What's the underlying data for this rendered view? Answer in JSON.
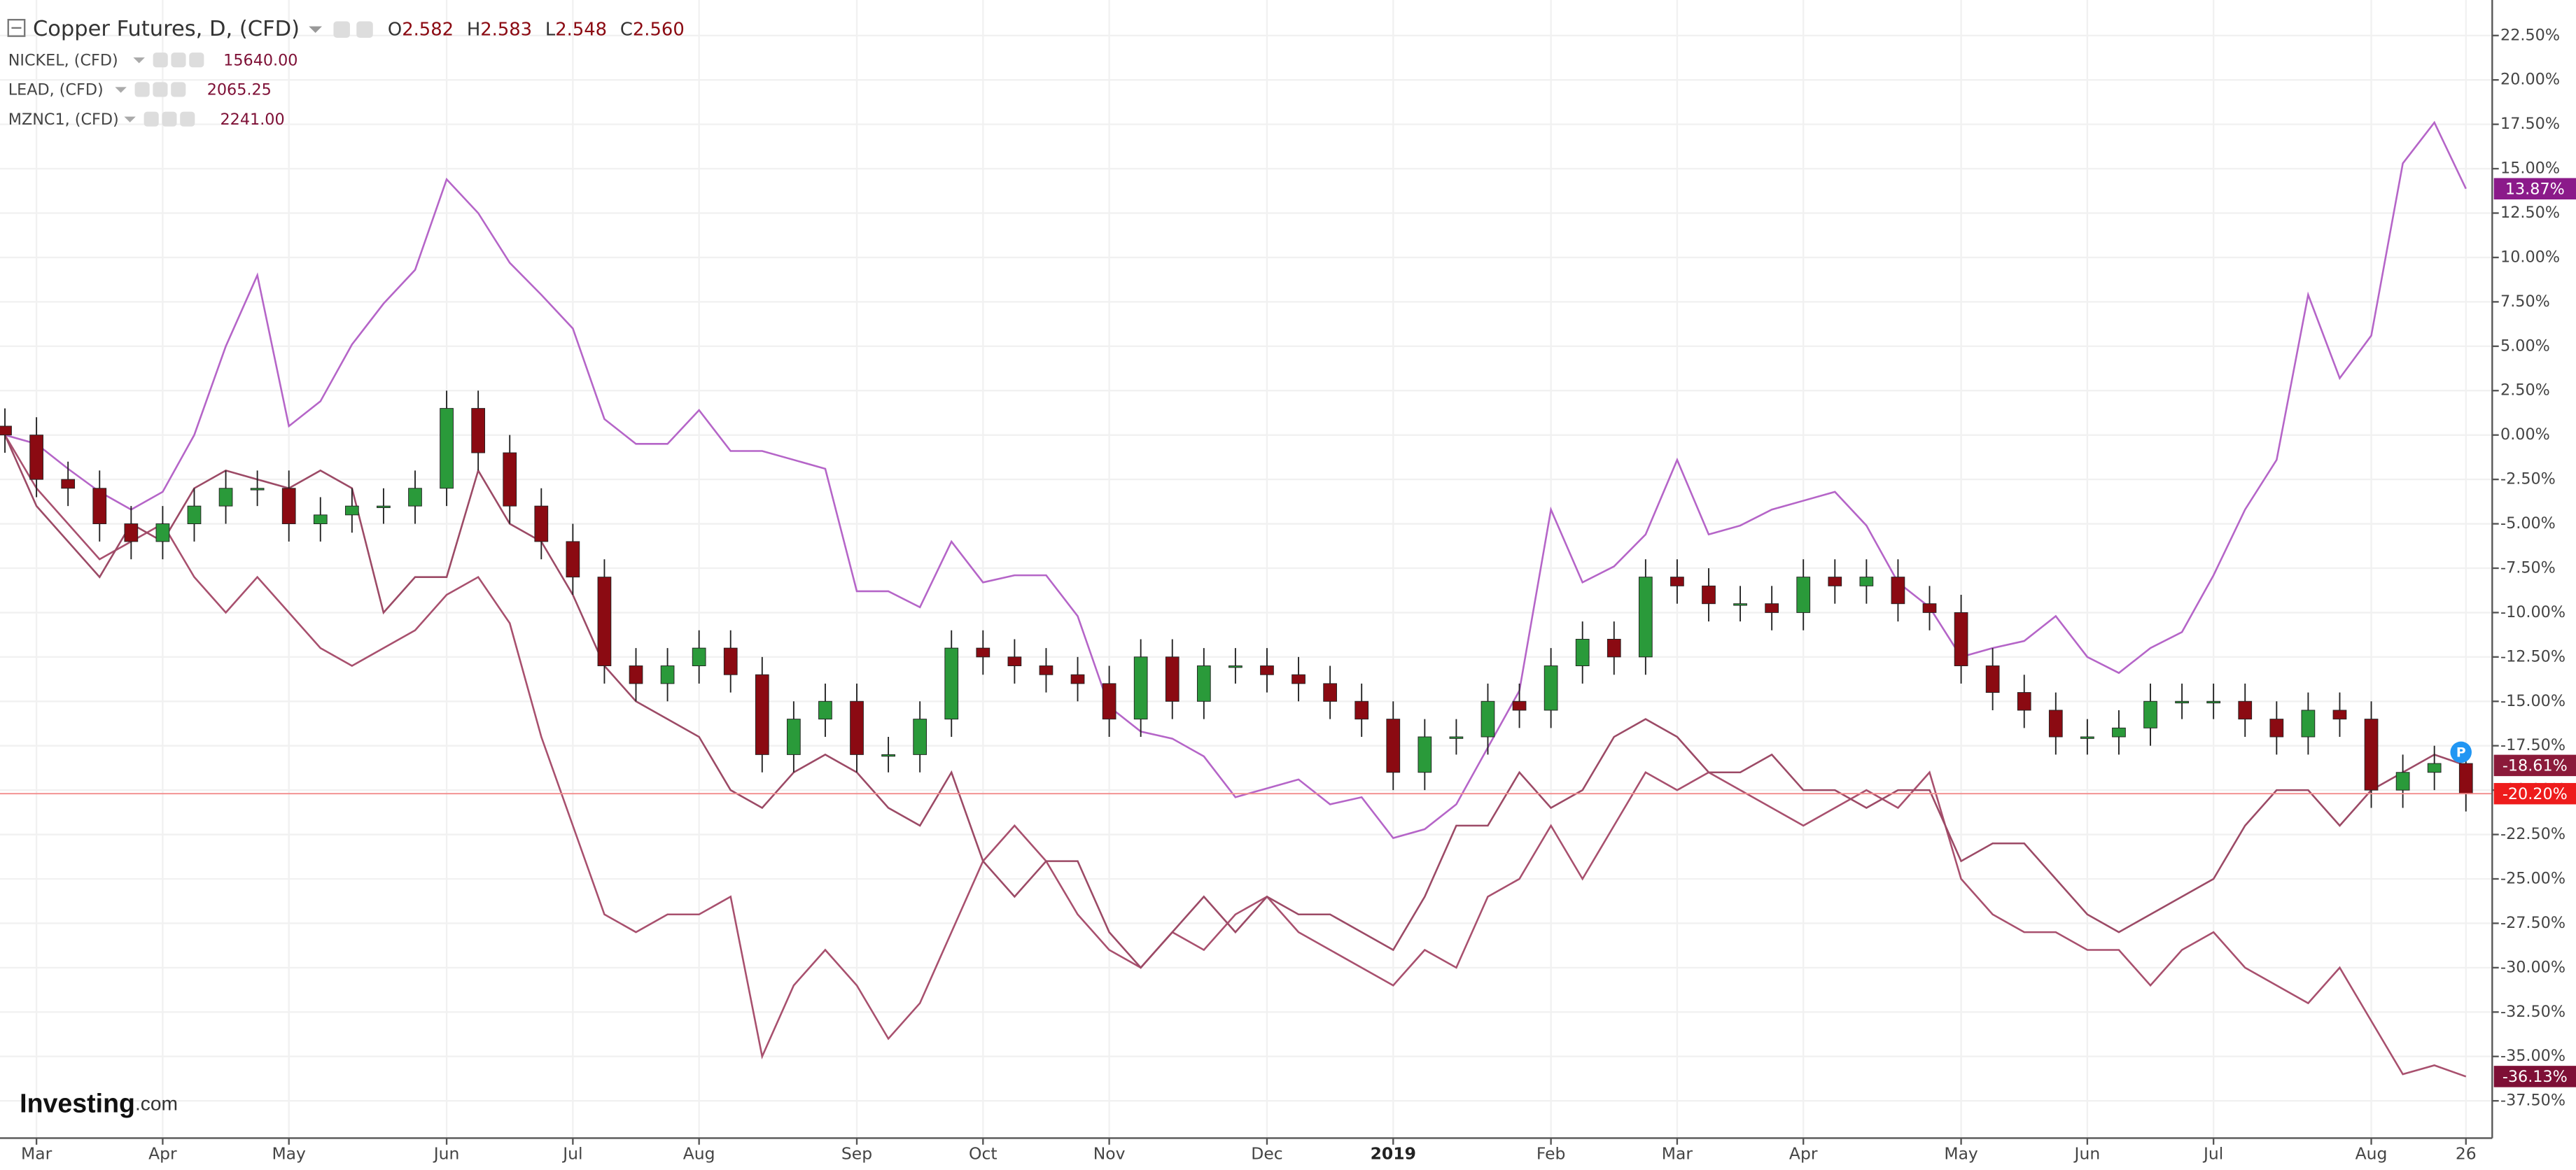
{
  "chart_data": {
    "type": "candlestick",
    "title": "Copper Futures, D, (CFD)",
    "quote": {
      "open_label": "O",
      "open": "2.582",
      "high_label": "H",
      "high": "2.583",
      "low_label": "L",
      "low": "2.548",
      "close_label": "C",
      "close": "2.560"
    },
    "categories": [
      null,
      "Mar",
      null,
      null,
      null,
      "Apr",
      null,
      null,
      null,
      "May",
      null,
      null,
      null,
      null,
      "Jun",
      null,
      null,
      null,
      "Jul",
      null,
      null,
      null,
      "Aug",
      null,
      null,
      null,
      null,
      "Sep",
      null,
      null,
      null,
      "Oct",
      null,
      null,
      null,
      "Nov",
      null,
      null,
      null,
      null,
      "Dec",
      null,
      null,
      null,
      "2019",
      null,
      null,
      null,
      null,
      "Feb",
      null,
      null,
      null,
      "Mar",
      null,
      null,
      null,
      "Apr",
      null,
      null,
      null,
      null,
      "May",
      null,
      null,
      null,
      "Jun",
      null,
      null,
      null,
      "Jul",
      null,
      null,
      null,
      null,
      "Aug",
      null,
      null,
      "26"
    ],
    "candles": {
      "up_color": "#2a9a3a",
      "down_color": "#8b0a12",
      "last_line_color": "#f28c8c",
      "label_color": "#ee1c1c",
      "last_label": "-20.20%",
      "open": [
        0.5,
        0,
        -2.5,
        -3,
        -5,
        -6,
        -5,
        -4,
        -3,
        -3,
        -5,
        -4.5,
        -4,
        -4,
        -3,
        1.5,
        -1,
        -4,
        -6,
        -8,
        -13,
        -14,
        -13,
        -12,
        -13.5,
        -18,
        -16,
        -15,
        -18,
        -18,
        -16,
        -12,
        -12.5,
        -13,
        -13.5,
        -14,
        -16,
        -12.5,
        -15,
        -13,
        -13,
        -13.5,
        -14,
        -15,
        -16,
        -19,
        -17,
        -17,
        -15,
        -15.5,
        -13,
        -11.5,
        -12.5,
        -8,
        -8.5,
        -9.5,
        -9.5,
        -10,
        -8,
        -8.5,
        -8,
        -9.5,
        -10,
        -13,
        -14.5,
        -15.5,
        -17,
        -17,
        -16.5,
        -15,
        -15,
        -15,
        -16,
        -17,
        -15.5,
        -16,
        -20,
        -19,
        -18.5
      ],
      "high": [
        1.5,
        1,
        -1.5,
        -2,
        -4,
        -4,
        -3,
        -2,
        -2,
        -2,
        -3.5,
        -3,
        -3,
        -2,
        2.5,
        2.5,
        0,
        -3,
        -5,
        -7,
        -12,
        -12,
        -11,
        -11,
        -12.5,
        -15,
        -14,
        -14,
        -17,
        -15,
        -11,
        -11,
        -11.5,
        -12,
        -12.5,
        -13,
        -11.5,
        -11.5,
        -12,
        -12,
        -12,
        -12.5,
        -13,
        -14,
        -15,
        -16,
        -16,
        -14,
        -14,
        -12,
        -10.5,
        -10.5,
        -7,
        -7,
        -7.5,
        -8.5,
        -8.5,
        -7,
        -7,
        -7,
        -7,
        -8.5,
        -9,
        -12,
        -13.5,
        -14.5,
        -16,
        -15.5,
        -14,
        -14,
        -14,
        -14,
        -15,
        -14.5,
        -14.5,
        -15,
        -18,
        -17.5,
        -17.5
      ],
      "low": [
        -1,
        -3.5,
        -4,
        -6,
        -7,
        -7,
        -6,
        -5,
        -4,
        -6,
        -6,
        -5.5,
        -5,
        -5,
        -4,
        -2,
        -5,
        -7,
        -9,
        -14,
        -15,
        -15,
        -14,
        -14.5,
        -19,
        -19,
        -17,
        -19,
        -19,
        -19,
        -17,
        -13.5,
        -14,
        -14.5,
        -15,
        -17,
        -17,
        -16,
        -16,
        -14,
        -14.5,
        -15,
        -16,
        -17,
        -20,
        -20,
        -18,
        -18,
        -16.5,
        -16.5,
        -14,
        -13.5,
        -13.5,
        -9.5,
        -10.5,
        -10.5,
        -11,
        -11,
        -9.5,
        -9.5,
        -10.5,
        -11,
        -14,
        -15.5,
        -16.5,
        -18,
        -18,
        -18,
        -17.5,
        -16,
        -16,
        -17,
        -18,
        -18,
        -17,
        -21,
        -21,
        -20,
        -21.2
      ],
      "close": [
        0,
        -2.5,
        -3,
        -5,
        -6,
        -5,
        -4,
        -3,
        -3,
        -5,
        -4.5,
        -4,
        -4,
        -3,
        1.5,
        -1,
        -4,
        -6,
        -8,
        -13,
        -14,
        -13,
        -12,
        -13.5,
        -18,
        -16,
        -15,
        -18,
        -18,
        -16,
        -12,
        -12.5,
        -13,
        -13.5,
        -14,
        -16,
        -12.5,
        -15,
        -13,
        -13,
        -13.5,
        -14,
        -15,
        -16,
        -19,
        -17,
        -17,
        -15,
        -15.5,
        -13,
        -11.5,
        -12.5,
        -8,
        -8.5,
        -9.5,
        -9.5,
        -10,
        -8,
        -8.5,
        -8,
        -9.5,
        -10,
        -13,
        -14.5,
        -15.5,
        -17,
        -17,
        -16.5,
        -15,
        -15,
        -15,
        -16,
        -17,
        -15.5,
        -16,
        -20,
        -19,
        -18.5,
        -20.2
      ]
    },
    "series": [
      {
        "name": "NICKEL, (CFD)",
        "price": "15640.00",
        "color": "#b565c8",
        "label_color": "#8b1a8a",
        "last_label": "13.87%",
        "values": [
          0,
          -0.5,
          -1.9,
          -3.2,
          -4.2,
          -3.2,
          0,
          5,
          9,
          0.5,
          1.9,
          5.1,
          7.4,
          9.3,
          14.4,
          12.5,
          9.7,
          7.9,
          6,
          0.9,
          -0.5,
          -0.5,
          1.4,
          -0.9,
          -0.9,
          -1.4,
          -1.9,
          -8.8,
          -8.8,
          -9.7,
          -6,
          -8.3,
          -7.9,
          -7.9,
          -10.2,
          -15.3,
          -16.7,
          -17.1,
          -18.1,
          -20.4,
          -19.9,
          -19.4,
          -20.8,
          -20.4,
          -22.7,
          -22.2,
          -20.8,
          -17.6,
          -14.4,
          -4.2,
          -8.3,
          -7.4,
          -5.6,
          -1.4,
          -5.6,
          -5.1,
          -4.2,
          -3.7,
          -3.2,
          -5.1,
          -8.3,
          -9.7,
          -12.5,
          -12,
          -11.6,
          -10.2,
          -12.5,
          -13.4,
          -12,
          -11.1,
          -7.9,
          -4.2,
          -1.4,
          7.9,
          3.2,
          5.6,
          15.3,
          17.6,
          13.87
        ]
      },
      {
        "name": "LEAD, (CFD)",
        "price": "2065.25",
        "color": "#a8506e",
        "label_color": "#7e1036",
        "last_label": "-36.13%",
        "values": [
          0,
          -3,
          -5,
          -7,
          -6,
          -5,
          -8,
          -10,
          -8,
          -10,
          -12,
          -13,
          -12,
          -11,
          -9,
          -8,
          -10.6,
          -17,
          -22,
          -27,
          -28,
          -27,
          -27,
          -26,
          -35,
          -31,
          -29,
          -31,
          -34,
          -32,
          -28,
          -24,
          -22,
          -24,
          -27,
          -29,
          -30,
          -28,
          -29,
          -27,
          -26,
          -28,
          -29,
          -30,
          -31,
          -29,
          -30,
          -26,
          -25,
          -22,
          -25,
          -22,
          -19,
          -20,
          -19,
          -20,
          -21,
          -22,
          -21,
          -20,
          -21,
          -19,
          -25,
          -27,
          -28,
          -28,
          -29,
          -29,
          -31,
          -29,
          -28,
          -30,
          -31,
          -32,
          -30,
          -33,
          -36,
          -35.5,
          -36.13
        ]
      },
      {
        "name": "MZNC1, (CFD)",
        "price": "2241.00",
        "color": "#9c4a66",
        "label_color": "#8b1a3a",
        "last_label": "-18.61%",
        "values": [
          0,
          -4,
          -6,
          -8,
          -5,
          -6,
          -3,
          -2,
          -2.5,
          -3,
          -2,
          -3,
          -10,
          -8,
          -8,
          -2,
          -5,
          -6,
          -9,
          -13,
          -15,
          -16,
          -17,
          -20,
          -21,
          -19,
          -18,
          -19,
          -21,
          -22,
          -19,
          -24,
          -26,
          -24,
          -24,
          -28,
          -30,
          -28,
          -26,
          -28,
          -26,
          -27,
          -27,
          -28,
          -29,
          -26,
          -22,
          -22,
          -19,
          -21,
          -20,
          -17,
          -16,
          -17,
          -19,
          -19,
          -18,
          -20,
          -20,
          -21,
          -20,
          -20,
          -24,
          -23,
          -23,
          -25,
          -27,
          -28,
          -27,
          -26,
          -25,
          -22,
          -20,
          -20,
          -22,
          -20,
          -19,
          -18,
          -18.61
        ]
      }
    ],
    "ylim": [
      -39.6,
      24.5
    ],
    "yticks": [
      {
        "value": 22.5,
        "label": "22.50%"
      },
      {
        "value": 20,
        "label": "20.00%"
      },
      {
        "value": 17.5,
        "label": "17.50%"
      },
      {
        "value": 15,
        "label": "15.00%"
      },
      {
        "value": 12.5,
        "label": "12.50%"
      },
      {
        "value": 10,
        "label": "10.00%"
      },
      {
        "value": 7.5,
        "label": "7.50%"
      },
      {
        "value": 5,
        "label": "5.00%"
      },
      {
        "value": 2.5,
        "label": "2.50%"
      },
      {
        "value": 0,
        "label": "0.00%"
      },
      {
        "value": -2.5,
        "label": "-2.50%"
      },
      {
        "value": -5,
        "label": "-5.00%"
      },
      {
        "value": -7.5,
        "label": "-7.50%"
      },
      {
        "value": -10,
        "label": "-10.00%"
      },
      {
        "value": -12.5,
        "label": "-12.50%"
      },
      {
        "value": -15,
        "label": "-15.00%"
      },
      {
        "value": -17.5,
        "label": "-17.50%"
      },
      {
        "value": -20,
        "label": "-20.00%"
      },
      {
        "value": -22.5,
        "label": "-22.50%"
      },
      {
        "value": -25,
        "label": "-25.00%"
      },
      {
        "value": -27.5,
        "label": "-27.50%"
      },
      {
        "value": -30,
        "label": "-30.00%"
      },
      {
        "value": -32.5,
        "label": "-32.50%"
      },
      {
        "value": -35,
        "label": "-35.00%"
      },
      {
        "value": -37.5,
        "label": "-37.50%"
      }
    ],
    "grid": true
  },
  "branding": {
    "logo": "Investing",
    "logo_suffix": ".com"
  }
}
